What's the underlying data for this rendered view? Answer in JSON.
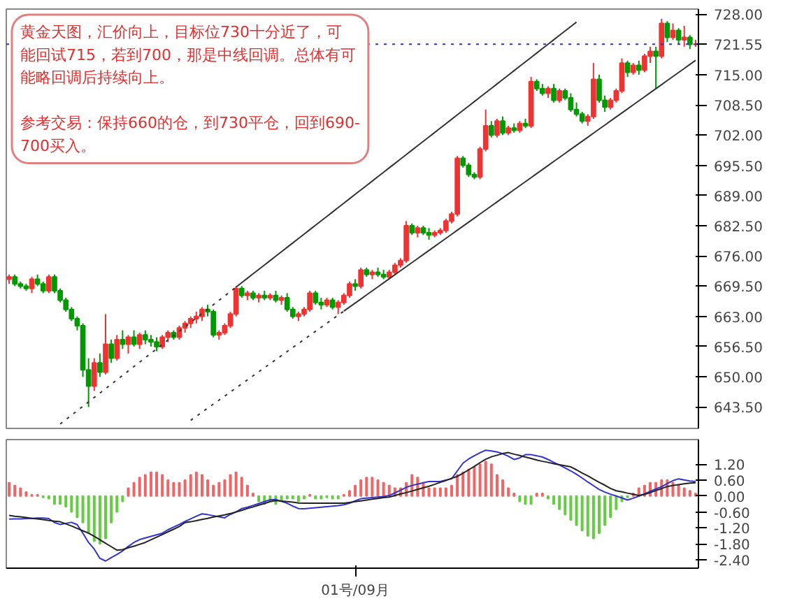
{
  "chart_data": [
    {
      "type": "candlestick",
      "annotations": [
        "黄金天图，汇价向上，目标位730十分近了，可能回试715，若到700，那是中线回调。总体有可能略回调后持续向上。",
        "参考交易：保持660的仓，到730平仓，回到690-700买入。"
      ],
      "categories": [
        null,
        null,
        null,
        null,
        null,
        null,
        null,
        null,
        null,
        null,
        null,
        null,
        null,
        null,
        null,
        null,
        null,
        null,
        null,
        null,
        null,
        null,
        null,
        null,
        null,
        null,
        null,
        null,
        null,
        null,
        null,
        null,
        null,
        null,
        null,
        null,
        null,
        null,
        null,
        null,
        null,
        null,
        null,
        null,
        null,
        null,
        null,
        null,
        null,
        null,
        null,
        null,
        null,
        null,
        null,
        null,
        null,
        null,
        null,
        null,
        null,
        null,
        null,
        null,
        null,
        null,
        null,
        null,
        null,
        null,
        null,
        null,
        null,
        null,
        null,
        null,
        null,
        null,
        null,
        null,
        null,
        null,
        null,
        null,
        null,
        null,
        null,
        null,
        null,
        null,
        null,
        null,
        null,
        null,
        null,
        null,
        null,
        null,
        null,
        null,
        null,
        null,
        null,
        null,
        null,
        null,
        null,
        null,
        null,
        null,
        null,
        null,
        null,
        null,
        null,
        null,
        null,
        null,
        null,
        null,
        null,
        null
      ],
      "ohlc": [
        [
          671,
          672,
          670,
          671.5
        ],
        [
          671.5,
          672,
          669.5,
          670
        ],
        [
          670,
          670.5,
          669,
          669.5
        ],
        [
          669.5,
          670,
          668.5,
          669
        ],
        [
          669,
          671.5,
          668,
          671
        ],
        [
          671,
          672,
          669.5,
          670
        ],
        [
          670,
          670.5,
          668,
          668.5
        ],
        [
          668.5,
          672,
          668,
          671.5
        ],
        [
          671.5,
          672,
          668,
          668.5
        ],
        [
          668.5,
          669,
          666,
          666.5
        ],
        [
          666.5,
          667,
          664,
          664.5
        ],
        [
          664.5,
          665,
          662,
          662.5
        ],
        [
          662.5,
          663,
          660,
          661
        ],
        [
          661,
          661.5,
          650,
          651.5
        ],
        [
          651.5,
          654,
          643.5,
          648
        ],
        [
          648,
          654,
          647,
          653
        ],
        [
          653,
          655,
          650,
          651
        ],
        [
          651,
          663.5,
          650.5,
          657
        ],
        [
          657,
          658,
          653,
          654
        ],
        [
          654,
          659,
          653.5,
          658
        ],
        [
          658,
          660,
          656,
          657
        ],
        [
          657,
          659,
          655,
          658.5
        ],
        [
          658.5,
          660,
          656.5,
          657
        ],
        [
          657,
          659.5,
          656,
          659
        ],
        [
          659,
          660,
          657,
          658
        ],
        [
          658,
          659,
          656.5,
          657.5
        ],
        [
          657.5,
          658.5,
          655.5,
          656.5
        ],
        [
          656.5,
          659,
          656,
          658.5
        ],
        [
          658.5,
          660,
          657.5,
          659.5
        ],
        [
          659.5,
          660,
          658,
          658.5
        ],
        [
          658.5,
          661,
          658,
          660.5
        ],
        [
          660.5,
          662,
          659.5,
          661.5
        ],
        [
          661.5,
          663,
          660.5,
          662.5
        ],
        [
          662.5,
          664,
          661.5,
          663
        ],
        [
          663,
          665,
          662,
          664.5
        ],
        [
          664.5,
          665.5,
          663,
          664
        ],
        [
          664,
          664.5,
          658.5,
          659
        ],
        [
          659,
          660,
          658,
          659.5
        ],
        [
          659.5,
          661.5,
          659,
          661
        ],
        [
          661,
          664,
          660.5,
          663.5
        ],
        [
          663.5,
          669.5,
          663,
          669
        ],
        [
          669,
          669.5,
          667,
          667.5
        ],
        [
          667.5,
          668.5,
          666.5,
          668
        ],
        [
          668,
          668.5,
          666.5,
          667
        ],
        [
          667,
          668,
          666,
          667.5
        ],
        [
          667.5,
          668.5,
          666.5,
          667
        ],
        [
          667,
          668,
          666.5,
          667.5
        ],
        [
          667.5,
          668.5,
          666,
          666.5
        ],
        [
          666.5,
          667.5,
          665.5,
          667
        ],
        [
          667,
          668,
          664,
          664.5
        ],
        [
          664.5,
          665,
          662.5,
          663
        ],
        [
          663,
          664,
          662,
          663.5
        ],
        [
          663.5,
          665,
          663,
          664.5
        ],
        [
          664.5,
          668.5,
          664,
          668
        ],
        [
          668,
          668.5,
          665.5,
          666
        ],
        [
          666,
          667,
          664.5,
          665.5
        ],
        [
          665.5,
          667,
          665,
          666.5
        ],
        [
          666.5,
          667,
          664.5,
          665
        ],
        [
          665,
          666.5,
          663.5,
          666
        ],
        [
          666,
          668,
          665.5,
          667.5
        ],
        [
          667.5,
          670.5,
          667,
          670
        ],
        [
          670,
          671,
          668.5,
          669.5
        ],
        [
          669.5,
          673.5,
          669,
          673
        ],
        [
          673,
          673.5,
          671.5,
          672
        ],
        [
          672,
          673,
          671,
          672.5
        ],
        [
          672.5,
          673.5,
          671.5,
          672
        ],
        [
          672,
          673,
          671,
          671.5
        ],
        [
          671.5,
          673,
          671,
          672.5
        ],
        [
          672.5,
          674.5,
          672,
          674
        ],
        [
          674,
          675.5,
          673.5,
          675
        ],
        [
          675,
          683.5,
          674.5,
          682.5
        ],
        [
          682.5,
          683,
          680.5,
          681
        ],
        [
          681,
          682.5,
          680,
          682
        ],
        [
          682,
          682.5,
          680.5,
          681
        ],
        [
          681,
          682,
          679.5,
          680.5
        ],
        [
          680.5,
          681.5,
          680,
          681
        ],
        [
          681,
          682,
          680.5,
          681.5
        ],
        [
          681.5,
          684,
          681,
          683.5
        ],
        [
          683.5,
          685.5,
          683,
          685
        ],
        [
          685,
          697.5,
          684.5,
          697
        ],
        [
          697,
          697.5,
          695,
          695.5
        ],
        [
          695.5,
          696,
          693,
          693.5
        ],
        [
          693.5,
          694,
          692.5,
          693
        ],
        [
          693,
          699.5,
          692.5,
          699
        ],
        [
          699,
          707.5,
          698.5,
          704
        ],
        [
          704,
          705,
          701.5,
          702
        ],
        [
          702,
          705.5,
          701.5,
          705
        ],
        [
          705,
          706,
          702,
          702.5
        ],
        [
          702.5,
          704,
          702,
          703.5
        ],
        [
          703.5,
          704.5,
          702.5,
          703
        ],
        [
          703,
          705,
          702.5,
          704.5
        ],
        [
          704.5,
          705.5,
          703.5,
          704
        ],
        [
          704,
          714.5,
          703.5,
          713.5
        ],
        [
          713.5,
          714,
          711.5,
          712
        ],
        [
          712,
          713,
          710.5,
          711
        ],
        [
          711,
          712.5,
          710,
          712
        ],
        [
          712,
          713,
          709,
          709.5
        ],
        [
          709.5,
          712,
          709,
          711.5
        ],
        [
          711.5,
          712,
          709.5,
          710
        ],
        [
          710,
          711,
          707,
          707.5
        ],
        [
          707.5,
          709,
          706,
          706.5
        ],
        [
          706.5,
          707,
          704.5,
          705
        ],
        [
          705,
          706.5,
          704,
          706
        ],
        [
          706,
          717.5,
          705.5,
          714
        ],
        [
          714,
          715,
          709,
          709.5
        ],
        [
          709.5,
          710.5,
          707,
          708
        ],
        [
          708,
          710,
          707.5,
          709.5
        ],
        [
          709.5,
          712,
          709,
          711.5
        ],
        [
          711.5,
          718.5,
          711,
          717.5
        ],
        [
          717.5,
          718,
          714.5,
          715.5
        ],
        [
          715.5,
          717.5,
          715,
          717
        ],
        [
          717,
          718,
          715,
          716
        ],
        [
          716,
          719.5,
          715.5,
          719
        ],
        [
          719,
          721,
          717.5,
          720
        ],
        [
          720,
          721,
          712,
          719
        ],
        [
          719,
          727,
          718.5,
          726
        ],
        [
          726,
          726.5,
          722,
          723
        ],
        [
          723,
          726,
          722.5,
          724.5
        ],
        [
          724.5,
          725,
          721.5,
          722.5
        ],
        [
          722.5,
          725.5,
          721,
          723
        ],
        [
          723,
          723.5,
          720.5,
          721.5
        ],
        [
          721.5,
          722.5,
          721,
          721.55
        ]
      ],
      "colors": [
        "#ee3333",
        "#009900",
        "#009900",
        "#009900",
        "#ee3333",
        "#009900",
        "#009900",
        "#ee3333",
        "#009900",
        "#009900",
        "#009900",
        "#009900",
        "#009900",
        "#009900",
        "#009900",
        "#ee3333",
        "#009900",
        "#ee3333",
        "#009900",
        "#ee3333",
        "#009900",
        "#ee3333",
        "#009900",
        "#ee3333",
        "#009900",
        "#009900",
        "#009900",
        "#ee3333",
        "#ee3333",
        "#009900",
        "#ee3333",
        "#ee3333",
        "#ee3333",
        "#ee3333",
        "#ee3333",
        "#009900",
        "#009900",
        "#ee3333",
        "#ee3333",
        "#ee3333",
        "#ee3333",
        "#009900",
        "#ee3333",
        "#009900",
        "#ee3333",
        "#009900",
        "#ee3333",
        "#009900",
        "#ee3333",
        "#009900",
        "#009900",
        "#ee3333",
        "#ee3333",
        "#ee3333",
        "#009900",
        "#009900",
        "#ee3333",
        "#009900",
        "#ee3333",
        "#ee3333",
        "#ee3333",
        "#009900",
        "#ee3333",
        "#009900",
        "#ee3333",
        "#009900",
        "#009900",
        "#ee3333",
        "#ee3333",
        "#ee3333",
        "#ee3333",
        "#009900",
        "#ee3333",
        "#009900",
        "#009900",
        "#ee3333",
        "#ee3333",
        "#ee3333",
        "#ee3333",
        "#ee3333",
        "#009900",
        "#009900",
        "#009900",
        "#ee3333",
        "#ee3333",
        "#009900",
        "#ee3333",
        "#009900",
        "#ee3333",
        "#009900",
        "#ee3333",
        "#009900",
        "#ee3333",
        "#009900",
        "#009900",
        "#ee3333",
        "#009900",
        "#ee3333",
        "#009900",
        "#009900",
        "#009900",
        "#009900",
        "#ee3333",
        "#ee3333",
        "#009900",
        "#009900",
        "#ee3333",
        "#ee3333",
        "#ee3333",
        "#009900",
        "#ee3333",
        "#009900",
        "#ee3333",
        "#ee3333",
        "#009900",
        "#ee3333",
        "#009900",
        "#ee3333",
        "#009900",
        "#ee3333",
        "#009900",
        "#ee3333"
      ],
      "series": [
        {
          "type": "line",
          "color": "#333333",
          "line_style": "dotted",
          "values": [
            null,
            null,
            null,
            null,
            null,
            null,
            null,
            null,
            null,
            639.85,
            640.8,
            641.75,
            642.7,
            643.65,
            644.6,
            645.55,
            646.5,
            647.45,
            648.4,
            649.35,
            650.3,
            651.25,
            652.2,
            653.15,
            654.1,
            655.05,
            656,
            656.95,
            657.9,
            658.85,
            659.8,
            660.75,
            661.7,
            662.65,
            663.6,
            664.55,
            665.5,
            666.45,
            667.4,
            668.35,
            669.3,
            null,
            null,
            null,
            null,
            null,
            null,
            null,
            null,
            null,
            null,
            null,
            null,
            null,
            null,
            null,
            null,
            null,
            null,
            null,
            null,
            null,
            null,
            null,
            null,
            null,
            null,
            null,
            null,
            null,
            null,
            null,
            null,
            null,
            null,
            null,
            null,
            null,
            null,
            null,
            null,
            null,
            null,
            null,
            null,
            null,
            null,
            null,
            null,
            null,
            null,
            null,
            null,
            null,
            null,
            null,
            null,
            null,
            null,
            null,
            null,
            null,
            null,
            null,
            null,
            null,
            null,
            null,
            null,
            null,
            null,
            null,
            null,
            null,
            null,
            null,
            null,
            null,
            null,
            null,
            null,
            null
          ]
        },
        {
          "type": "line",
          "color": "#333333",
          "line_style": "solid",
          "values": [
            null,
            null,
            null,
            null,
            null,
            null,
            null,
            null,
            null,
            null,
            null,
            null,
            null,
            null,
            null,
            null,
            null,
            null,
            null,
            null,
            null,
            null,
            null,
            null,
            null,
            null,
            null,
            null,
            null,
            null,
            null,
            null,
            null,
            null,
            null,
            null,
            null,
            null,
            null,
            null,
            669.3,
            670.25,
            671.2,
            672.15,
            673.1,
            674.05,
            675,
            675.95,
            676.9,
            677.85,
            678.8,
            679.75,
            680.7,
            681.65,
            682.6,
            683.55,
            684.5,
            685.45,
            686.4,
            687.35,
            688.3,
            689.25,
            690.2,
            691.15,
            692.1,
            693.05,
            694,
            694.95,
            695.9,
            696.85,
            697.8,
            698.75,
            699.7,
            700.65,
            701.6,
            702.55,
            703.5,
            704.45,
            705.4,
            706.35,
            707.3,
            708.25,
            709.2,
            710.15,
            711.1,
            712.05,
            713,
            713.95,
            714.9,
            715.85,
            716.8,
            717.75,
            718.7,
            719.65,
            720.6,
            721.55,
            722.5,
            723.45,
            724.4,
            725.35,
            726.3,
            null,
            null,
            null,
            null,
            null,
            null,
            null,
            null,
            null,
            null,
            null,
            null,
            null,
            null,
            null,
            null,
            null,
            null,
            null,
            null,
            null
          ]
        },
        {
          "type": "line",
          "color": "#333333",
          "line_style": "dotted",
          "values": [
            null,
            null,
            null,
            null,
            null,
            null,
            null,
            null,
            null,
            null,
            null,
            null,
            null,
            null,
            null,
            null,
            null,
            null,
            null,
            null,
            null,
            null,
            null,
            null,
            null,
            null,
            null,
            null,
            null,
            null,
            null,
            null,
            640.64,
            641.51,
            642.38,
            643.25,
            644.12,
            644.99,
            645.86,
            646.73,
            647.6,
            648.47,
            649.34,
            650.21,
            651.08,
            651.95,
            652.82,
            653.69,
            654.56,
            655.43,
            656.3,
            657.17,
            658.04,
            658.91,
            659.78,
            660.65,
            661.52,
            662.39,
            663.26,
            664.13,
            null,
            null,
            null,
            null,
            null,
            null,
            null,
            null,
            null,
            null,
            null,
            null,
            null,
            null,
            null,
            null,
            null,
            null,
            null,
            null,
            null,
            null,
            null,
            null,
            null,
            null,
            null,
            null,
            null,
            null,
            null,
            null,
            null,
            null,
            null,
            null,
            null,
            null,
            null,
            null,
            null,
            null,
            null,
            null,
            null,
            null,
            null,
            null,
            null,
            null,
            null,
            null,
            null,
            null,
            null,
            null,
            null,
            null,
            null,
            null,
            null,
            null
          ]
        },
        {
          "type": "line",
          "color": "#333333",
          "line_style": "solid",
          "values": [
            null,
            null,
            null,
            null,
            null,
            null,
            null,
            null,
            null,
            null,
            null,
            null,
            null,
            null,
            null,
            null,
            null,
            null,
            null,
            null,
            null,
            null,
            null,
            null,
            null,
            null,
            null,
            null,
            null,
            null,
            null,
            null,
            null,
            null,
            null,
            null,
            null,
            null,
            null,
            null,
            null,
            null,
            null,
            null,
            null,
            null,
            null,
            null,
            null,
            null,
            null,
            null,
            null,
            null,
            null,
            null,
            null,
            null,
            null,
            664.13,
            665,
            665.87,
            666.74,
            667.61,
            668.48,
            669.35,
            670.22,
            671.09,
            671.96,
            672.83,
            673.7,
            674.57,
            675.44,
            676.31,
            677.18,
            678.05,
            678.92,
            679.79,
            680.66,
            681.53,
            682.4,
            683.27,
            684.14,
            685.01,
            685.88,
            686.75,
            687.62,
            688.49,
            689.36,
            690.23,
            691.1,
            691.97,
            692.84,
            693.71,
            694.58,
            695.45,
            696.32,
            697.19,
            698.06,
            698.93,
            699.8,
            700.67,
            701.54,
            702.41,
            703.28,
            704.15,
            705.02,
            705.89,
            706.76,
            707.63,
            708.5,
            709.37,
            710.24,
            711.11,
            711.98,
            712.85,
            713.72,
            714.59,
            715.46,
            716.33,
            717.2,
            718.07
          ]
        }
      ],
      "ref_lines": [
        {
          "axis": "y",
          "value": 721.55,
          "label": "721.55",
          "color": "#3333cc",
          "line_style": "dotted"
        }
      ],
      "ylim": [
        638.9,
        729.1
      ],
      "yticks": [
        {
          "value": 728,
          "label": "728.00"
        },
        {
          "value": 715,
          "label": "715.00"
        },
        {
          "value": 708.5,
          "label": "708.50"
        },
        {
          "value": 702,
          "label": "702.00"
        },
        {
          "value": 695.5,
          "label": "695.50"
        },
        {
          "value": 689,
          "label": "689.00"
        },
        {
          "value": 682.5,
          "label": "682.50"
        },
        {
          "value": 676,
          "label": "676.00"
        },
        {
          "value": 669.5,
          "label": "669.50"
        },
        {
          "value": 663,
          "label": "663.00"
        },
        {
          "value": 656.5,
          "label": "656.50"
        },
        {
          "value": 650,
          "label": "650.00"
        },
        {
          "value": 643.5,
          "label": "643.50"
        }
      ],
      "tick_labels": "y"
    },
    {
      "type": "bar",
      "annotations": [
        "01号/09月"
      ],
      "categories": [
        null,
        null,
        null,
        null,
        null,
        null,
        null,
        null,
        null,
        null,
        null,
        null,
        null,
        null,
        null,
        null,
        null,
        null,
        null,
        null,
        null,
        null,
        null,
        null,
        null,
        null,
        null,
        null,
        null,
        null,
        null,
        null,
        null,
        null,
        null,
        null,
        null,
        null,
        null,
        null,
        null,
        null,
        null,
        null,
        null,
        null,
        null,
        null,
        null,
        null,
        null,
        null,
        null,
        null,
        null,
        null,
        null,
        null,
        null,
        null,
        null,
        null,
        null,
        null,
        null,
        null,
        null,
        null,
        null,
        null,
        null,
        null,
        null,
        null,
        null,
        null,
        null,
        null,
        null,
        null,
        null,
        null,
        null,
        null,
        null,
        null,
        null,
        null,
        null,
        null,
        null,
        null,
        null,
        null,
        null,
        null,
        null,
        null,
        null,
        null,
        null,
        null,
        null,
        null,
        null,
        null,
        null,
        null,
        null,
        null,
        null,
        null,
        null,
        null,
        null,
        null,
        null,
        null,
        null,
        null,
        null,
        null
      ],
      "series": [
        {
          "type": "bar",
          "values": [
            0.5,
            0.4,
            0.3,
            0.15,
            0.05,
            0.05,
            -0.05,
            -0.1,
            -0.3,
            -0.3,
            -0.4,
            -0.6,
            -0.8,
            -1.0,
            -1.4,
            -1.7,
            -1.8,
            -1.6,
            -1.0,
            -0.6,
            -0.2,
            0.3,
            0.5,
            0.7,
            0.8,
            0.9,
            0.9,
            0.8,
            0.6,
            0.5,
            0.5,
            0.6,
            0.8,
            0.9,
            0.8,
            0.6,
            0.4,
            0.5,
            0.6,
            0.8,
            0.9,
            0.7,
            0.4,
            0.1,
            -0.2,
            -0.3,
            -0.2,
            -0.3,
            -0.2,
            -0.1,
            -0.1,
            -0.2,
            -0.1,
            0.05,
            -0.1,
            -0.1,
            -0.05,
            -0.1,
            -0.1,
            0.05,
            0.2,
            0.4,
            0.6,
            0.7,
            0.7,
            0.6,
            0.5,
            0.4,
            0.3,
            0.3,
            0.5,
            0.8,
            0.7,
            0.5,
            0.3,
            0.3,
            0.3,
            0.3,
            0.4,
            0.8,
            0.9,
            1.0,
            1.1,
            1.2,
            1.3,
            1.2,
            0.8,
            0.6,
            0.3,
            0.1,
            -0.2,
            -0.3,
            -0.3,
            0.1,
            0.1,
            -0.1,
            -0.3,
            -0.5,
            -0.7,
            -0.9,
            -1.1,
            -1.3,
            -1.5,
            -1.6,
            -1.4,
            -1.1,
            -0.8,
            -0.5,
            -0.2,
            -0.05,
            0.1,
            0.3,
            0.4,
            0.5,
            0.5,
            0.6,
            0.6,
            0.5,
            0.4,
            0.3,
            0.2,
            0.1
          ],
          "colors": [
            "#ee6666",
            "#ee6666",
            "#ee6666",
            "#ee6666",
            "#ee6666",
            "#ee6666",
            "#66cc44",
            "#66cc44",
            "#66cc44",
            "#66cc44",
            "#66cc44",
            "#66cc44",
            "#66cc44",
            "#66cc44",
            "#66cc44",
            "#66cc44",
            "#66cc44",
            "#66cc44",
            "#66cc44",
            "#66cc44",
            "#66cc44",
            "#ee6666",
            "#ee6666",
            "#ee6666",
            "#ee6666",
            "#ee6666",
            "#ee6666",
            "#ee6666",
            "#ee6666",
            "#ee6666",
            "#ee6666",
            "#ee6666",
            "#ee6666",
            "#ee6666",
            "#ee6666",
            "#ee6666",
            "#ee6666",
            "#ee6666",
            "#ee6666",
            "#ee6666",
            "#ee6666",
            "#ee6666",
            "#ee6666",
            "#ee6666",
            "#66cc44",
            "#66cc44",
            "#66cc44",
            "#66cc44",
            "#66cc44",
            "#66cc44",
            "#66cc44",
            "#66cc44",
            "#66cc44",
            "#ee6666",
            "#66cc44",
            "#66cc44",
            "#66cc44",
            "#66cc44",
            "#66cc44",
            "#ee6666",
            "#ee6666",
            "#ee6666",
            "#ee6666",
            "#ee6666",
            "#ee6666",
            "#ee6666",
            "#ee6666",
            "#ee6666",
            "#ee6666",
            "#ee6666",
            "#ee6666",
            "#ee6666",
            "#ee6666",
            "#ee6666",
            "#ee6666",
            "#ee6666",
            "#ee6666",
            "#ee6666",
            "#ee6666",
            "#ee6666",
            "#ee6666",
            "#ee6666",
            "#ee6666",
            "#ee6666",
            "#ee6666",
            "#ee6666",
            "#ee6666",
            "#ee6666",
            "#ee6666",
            "#ee6666",
            "#66cc44",
            "#66cc44",
            "#66cc44",
            "#ee6666",
            "#ee6666",
            "#66cc44",
            "#66cc44",
            "#66cc44",
            "#66cc44",
            "#66cc44",
            "#66cc44",
            "#66cc44",
            "#66cc44",
            "#66cc44",
            "#66cc44",
            "#66cc44",
            "#66cc44",
            "#66cc44",
            "#66cc44",
            "#66cc44",
            "#ee6666",
            "#ee6666",
            "#ee6666",
            "#ee6666",
            "#ee6666",
            "#ee6666",
            "#ee6666",
            "#ee6666",
            "#ee6666",
            "#ee6666",
            "#ee6666",
            "#ee6666"
          ]
        },
        {
          "type": "line",
          "color": "#3333cc",
          "values": [
            -0.87,
            -0.86,
            -0.86,
            -0.85,
            -0.84,
            -0.83,
            -0.83,
            -0.85,
            -1.0,
            -1.07,
            -1.03,
            -0.99,
            -1.08,
            -1.4,
            -1.75,
            -2.0,
            -2.35,
            -2.45,
            -2.32,
            -2.2,
            -2.07,
            -1.9,
            -1.75,
            -1.64,
            -1.58,
            -1.52,
            -1.46,
            -1.4,
            -1.27,
            -1.17,
            -1.07,
            -0.96,
            -0.86,
            -0.76,
            -0.67,
            -0.7,
            -0.74,
            -0.78,
            -0.82,
            -0.69,
            -0.6,
            -0.47,
            -0.42,
            -0.35,
            -0.28,
            -0.21,
            -0.14,
            -0.13,
            -0.2,
            -0.27,
            -0.38,
            -0.47,
            -0.48,
            -0.46,
            -0.44,
            -0.42,
            -0.4,
            -0.38,
            -0.36,
            -0.33,
            -0.27,
            -0.18,
            -0.1,
            -0.08,
            -0.06,
            -0.04,
            -0.02,
            0.02,
            0.12,
            0.22,
            0.33,
            0.4,
            0.45,
            0.5,
            0.55,
            0.55,
            0.55,
            0.6,
            0.65,
            0.95,
            1.24,
            1.4,
            1.52,
            1.63,
            1.73,
            1.7,
            1.66,
            1.6,
            1.5,
            1.38,
            1.44,
            1.56,
            1.56,
            1.52,
            1.47,
            1.38,
            1.27,
            1.17,
            1.06,
            0.95,
            0.82,
            0.68,
            0.53,
            0.39,
            0.25,
            0.15,
            0.07,
            0,
            -0.07,
            -0.15,
            -0.08,
            0,
            0.08,
            0.18,
            0.27,
            0.35,
            0.47,
            0.58,
            0.65,
            0.61,
            0.57,
            0.55
          ]
        },
        {
          "type": "line",
          "color": "#222222",
          "values": [
            -0.73,
            -0.76,
            -0.78,
            -0.81,
            -0.84,
            -0.86,
            -0.89,
            -0.92,
            -0.95,
            -0.97,
            -1.05,
            -1.13,
            -1.22,
            -1.31,
            -1.4,
            -1.52,
            -1.65,
            -1.78,
            -1.91,
            -2.04,
            -2.02,
            -1.95,
            -1.89,
            -1.82,
            -1.75,
            -1.65,
            -1.55,
            -1.45,
            -1.35,
            -1.25,
            -1.15,
            -1.0,
            -0.97,
            -0.93,
            -0.88,
            -0.84,
            -0.79,
            -0.75,
            -0.71,
            -0.66,
            -0.6,
            -0.54,
            -0.47,
            -0.41,
            -0.34,
            -0.28,
            -0.21,
            -0.17,
            -0.19,
            -0.21,
            -0.23,
            -0.26,
            -0.27,
            -0.27,
            -0.27,
            -0.27,
            -0.27,
            -0.27,
            -0.27,
            -0.27,
            -0.24,
            -0.21,
            -0.18,
            -0.15,
            -0.12,
            -0.09,
            -0.06,
            -0.04,
            0.02,
            0.08,
            0.13,
            0.19,
            0.25,
            0.31,
            0.37,
            0.44,
            0.52,
            0.59,
            0.67,
            0.74,
            0.86,
            0.99,
            1.12,
            1.26,
            1.39,
            1.48,
            1.54,
            1.6,
            1.64,
            1.58,
            1.53,
            1.47,
            1.42,
            1.36,
            1.31,
            1.27,
            1.22,
            1.18,
            1.14,
            1.1,
            0.99,
            0.87,
            0.76,
            0.64,
            0.52,
            0.41,
            0.29,
            0.2,
            0.16,
            0.11,
            0.07,
            0.02,
            0.06,
            0.13,
            0.21,
            0.28,
            0.36,
            0.4,
            0.43,
            0.46,
            0.49,
            0.5
          ]
        }
      ],
      "ylim": [
        -2.72,
        2.13
      ],
      "yticks": [
        {
          "value": 1.2,
          "label": "1.20"
        },
        {
          "value": 0.6,
          "label": "0.60"
        },
        {
          "value": 0,
          "label": "0.00"
        },
        {
          "value": -0.6,
          "label": "-0.60"
        },
        {
          "value": -1.2,
          "label": "-1.20"
        },
        {
          "value": -1.8,
          "label": "-1.80"
        },
        {
          "value": -2.4,
          "label": "-2.40"
        }
      ],
      "tick_labels": "y"
    }
  ]
}
